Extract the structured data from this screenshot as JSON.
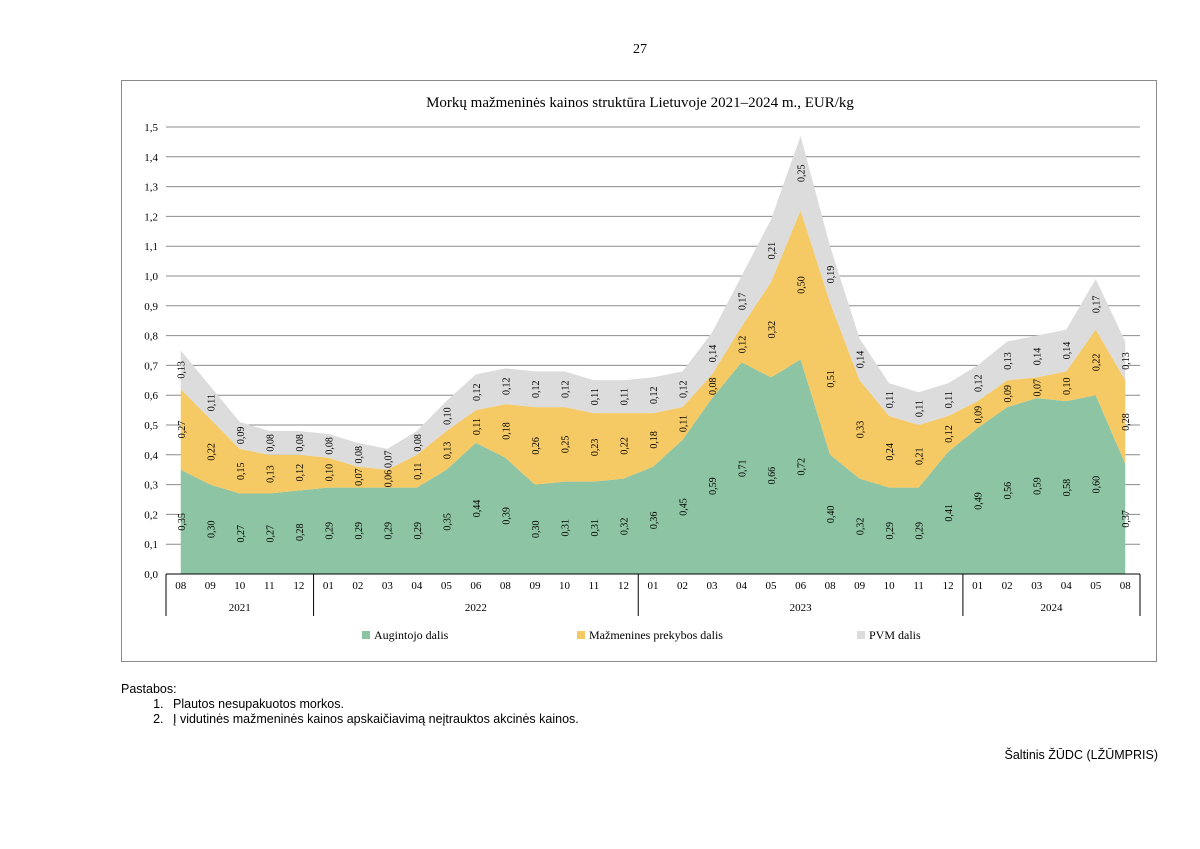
{
  "page_number": "27",
  "chart_data": {
    "type": "area",
    "stacked": true,
    "title": "Morkų mažmeninės kainos struktūra Lietuvoje 2021–2024 m., EUR/kg",
    "xlabel": "",
    "ylabel": "",
    "ylim": [
      0,
      1.5
    ],
    "yticks": [
      "0,0",
      "0,1",
      "0,2",
      "0,3",
      "0,4",
      "0,5",
      "0,6",
      "0,7",
      "0,8",
      "0,9",
      "1,0",
      "1,1",
      "1,2",
      "1,3",
      "1,4",
      "1,5"
    ],
    "grid": true,
    "legend_position": "bottom",
    "categories": [
      "08",
      "09",
      "10",
      "11",
      "12",
      "01",
      "02",
      "03",
      "04",
      "05",
      "06",
      "08",
      "09",
      "10",
      "11",
      "12",
      "01",
      "02",
      "03",
      "04",
      "05",
      "06",
      "08",
      "09",
      "10",
      "11",
      "12",
      "01",
      "02",
      "03",
      "04",
      "05",
      "08"
    ],
    "year_groups": [
      {
        "label": "2021",
        "count": 5
      },
      {
        "label": "2022",
        "count": 11
      },
      {
        "label": "2023",
        "count": 11
      },
      {
        "label": "2024",
        "count": 6
      }
    ],
    "series": [
      {
        "name": "Augintojo dalis",
        "color": "#8dc4a3",
        "values": [
          0.35,
          0.3,
          0.27,
          0.27,
          0.28,
          0.29,
          0.29,
          0.29,
          0.29,
          0.35,
          0.44,
          0.39,
          0.3,
          0.31,
          0.31,
          0.32,
          0.36,
          0.45,
          0.59,
          0.71,
          0.66,
          0.72,
          0.4,
          0.32,
          0.29,
          0.29,
          0.41,
          0.49,
          0.56,
          0.59,
          0.58,
          0.6,
          0.37
        ],
        "labels": [
          "0,35",
          "0,30",
          "0,27",
          "0,27",
          "0,28",
          "0,29",
          "0,29",
          "0,29",
          "0,29",
          "0,35",
          "0,44",
          "0,39",
          "0,30",
          "0,31",
          "0,31",
          "0,32",
          "0,36",
          "0,45",
          "0,59",
          "0,71",
          "0,66",
          "0,72",
          "0,40",
          "0,32",
          "0,29",
          "0,29",
          "0,41",
          "0,49",
          "0,56",
          "0,59",
          "0,58",
          "0,60",
          "0,37"
        ]
      },
      {
        "name": "Mažmenines prekybos dalis",
        "color": "#f5c964",
        "values": [
          0.27,
          0.22,
          0.15,
          0.13,
          0.12,
          0.1,
          0.07,
          0.06,
          0.11,
          0.13,
          0.11,
          0.18,
          0.26,
          0.25,
          0.23,
          0.22,
          0.18,
          0.11,
          0.08,
          0.12,
          0.32,
          0.5,
          0.51,
          0.33,
          0.24,
          0.21,
          0.12,
          0.09,
          0.09,
          0.07,
          0.1,
          0.22,
          0.28
        ],
        "labels": [
          "0,27",
          "0,22",
          "0,15",
          "0,13",
          "0,12",
          "0,10",
          "0,07",
          "0,06",
          "0,11",
          "0,13",
          "0,11",
          "0,18",
          "0,26",
          "0,25",
          "0,23",
          "0,22",
          "0,18",
          "0,11",
          "0,08",
          "0,12",
          "0,32",
          "0,50",
          "0,51",
          "0,33",
          "0,24",
          "0,21",
          "0,12",
          "0,09",
          "0,09",
          "0,07",
          "0,10",
          "0,22",
          "0,28"
        ]
      },
      {
        "name": "PVM dalis",
        "color": "#dcdcdc",
        "values": [
          0.13,
          0.11,
          0.09,
          0.08,
          0.08,
          0.08,
          0.08,
          0.07,
          0.08,
          0.1,
          0.12,
          0.12,
          0.12,
          0.12,
          0.11,
          0.11,
          0.12,
          0.12,
          0.14,
          0.17,
          0.21,
          0.25,
          0.19,
          0.14,
          0.11,
          0.11,
          0.11,
          0.12,
          0.13,
          0.14,
          0.14,
          0.17,
          0.13
        ],
        "labels": [
          "0,13",
          "0,11",
          "0,09",
          "0,08",
          "0,08",
          "0,08",
          "0,08",
          "0,07",
          "0,08",
          "0,10",
          "0,12",
          "0,12",
          "0,12",
          "0,12",
          "0,11",
          "0,11",
          "0,12",
          "0,12",
          "0,14",
          "0,17",
          "0,21",
          "0,25",
          "0,19",
          "0,14",
          "0,11",
          "0,11",
          "0,11",
          "0,12",
          "0,13",
          "0,14",
          "0,14",
          "0,17",
          "0,13"
        ]
      }
    ]
  },
  "notes": {
    "heading": "Pastabos:",
    "items": [
      "Plautos nesupakuotos morkos.",
      "Į vidutinės mažmeninės kainos apskaičiavimą neįtrauktos akcinės kainos."
    ]
  },
  "source": "Šaltinis ŽŪDC (LŽŪMPRIS)"
}
